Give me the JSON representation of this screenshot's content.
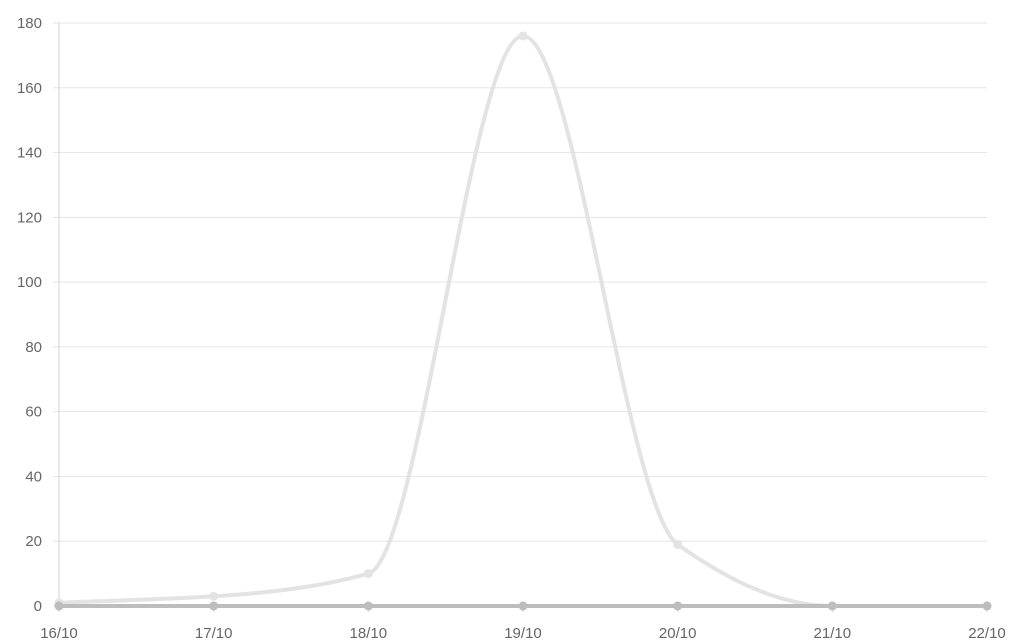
{
  "chart_data": {
    "type": "line",
    "title": "",
    "xlabel": "",
    "ylabel": "",
    "categories": [
      "16/10",
      "17/10",
      "18/10",
      "19/10",
      "20/10",
      "21/10",
      "22/10"
    ],
    "ylim": [
      0,
      180
    ],
    "yticks": [
      "0",
      "20",
      "40",
      "60",
      "80",
      "100",
      "120",
      "140",
      "160",
      "180"
    ],
    "grid": true,
    "legend": "none",
    "smooth": true,
    "series": [
      {
        "values": [
          1,
          3,
          10,
          176,
          19,
          0,
          0
        ],
        "color": "#e3e3e3"
      },
      {
        "values": [
          0,
          0,
          0,
          0,
          0,
          0,
          0
        ],
        "color": "#bdbdbd"
      }
    ]
  }
}
